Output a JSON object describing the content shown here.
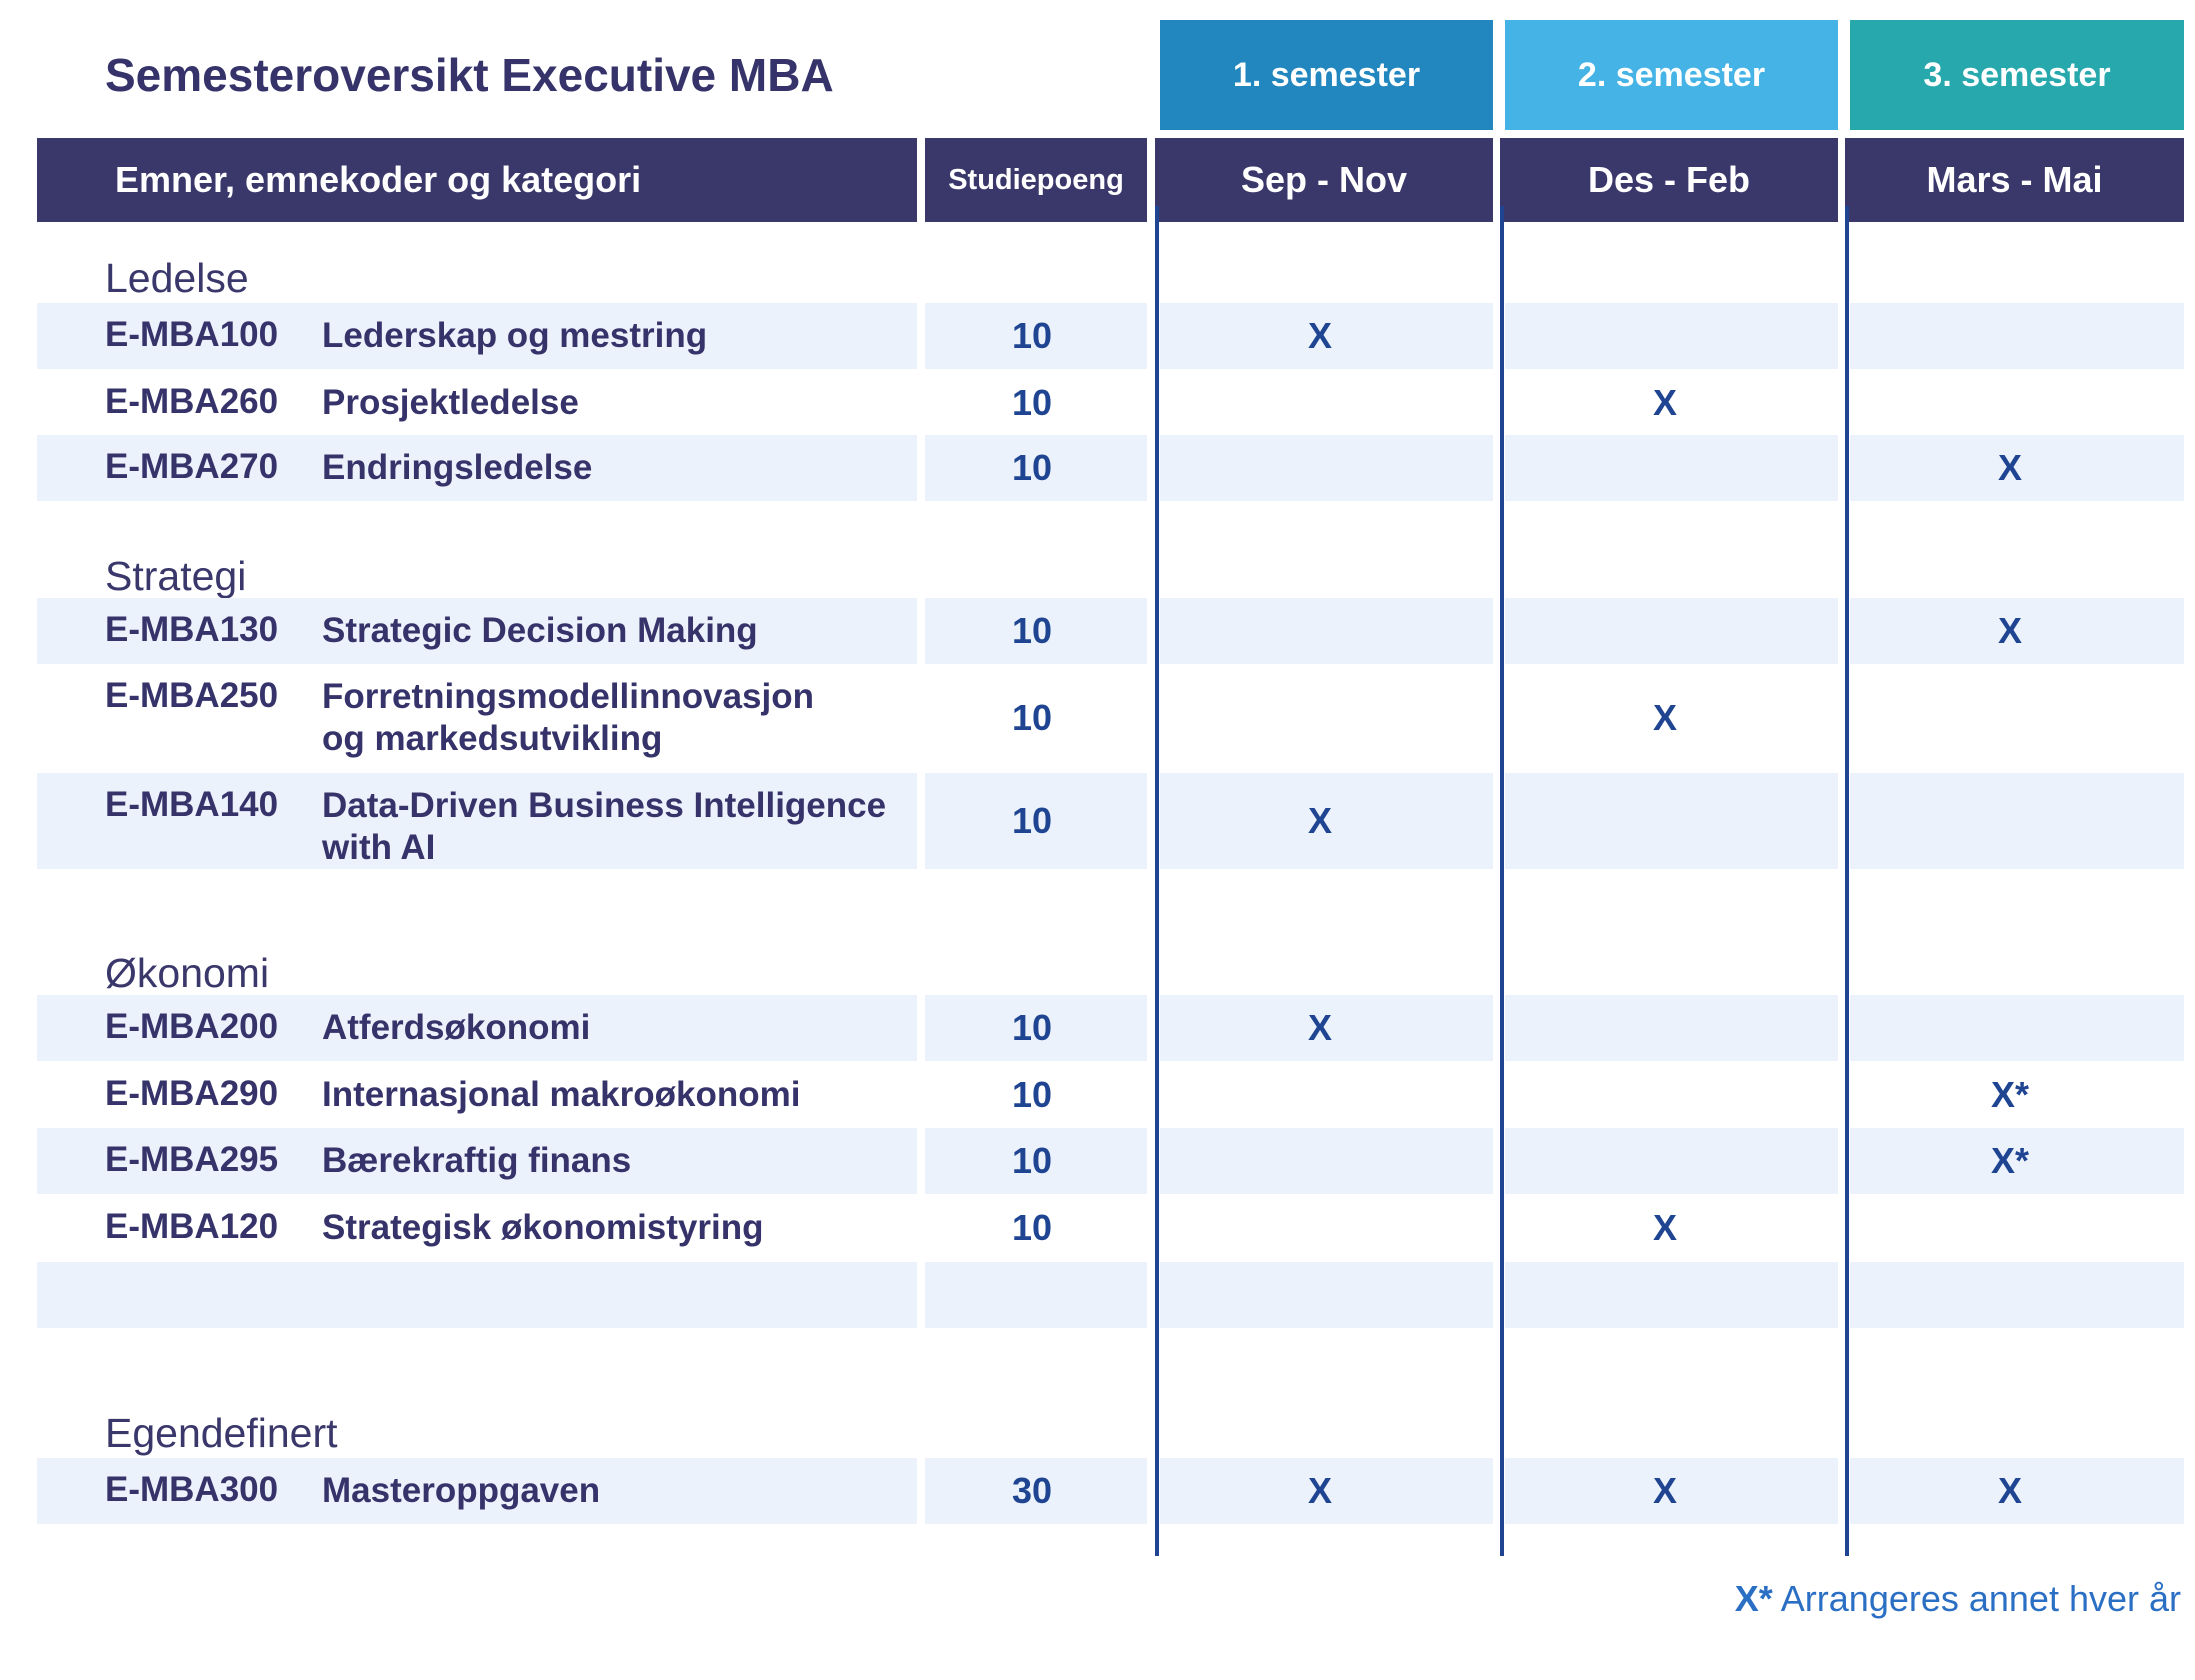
{
  "title": "Semesteroversikt Executive MBA",
  "semesters": [
    {
      "label": "1. semester",
      "period": "Sep - Nov",
      "color": "#2287be"
    },
    {
      "label": "2. semester",
      "period": "Des - Feb",
      "color": "#45b3e6"
    },
    {
      "label": "3.  semester",
      "period": "Mars - Mai",
      "color": "#27a8ac"
    }
  ],
  "header": {
    "subjects": "Emner, emnekoder og kategori",
    "credits": "Studiepoeng"
  },
  "categories": [
    {
      "name": "Ledelse",
      "courses": [
        {
          "code": "E-MBA100",
          "name": "Lederskap og mestring",
          "credits": "10",
          "marks": [
            "X",
            "",
            ""
          ]
        },
        {
          "code": "E-MBA260",
          "name": "Prosjektledelse",
          "credits": "10",
          "marks": [
            "",
            "X",
            ""
          ]
        },
        {
          "code": "E-MBA270",
          "name": "Endringsledelse",
          "credits": "10",
          "marks": [
            "",
            "",
            "X"
          ]
        }
      ]
    },
    {
      "name": "Strategi",
      "courses": [
        {
          "code": "E-MBA130",
          "name": "Strategic Decision Making",
          "credits": "10",
          "marks": [
            "",
            "",
            "X"
          ]
        },
        {
          "code": "E-MBA250",
          "name_lines": [
            "Forretningsmodellinnovasjon",
            "og markedsutvikling"
          ],
          "credits": "10",
          "marks": [
            "",
            "X",
            ""
          ]
        },
        {
          "code": "E-MBA140",
          "name_lines": [
            "Data-Driven Business Intelligence",
            "with AI"
          ],
          "credits": "10",
          "marks": [
            "X",
            "",
            ""
          ]
        }
      ]
    },
    {
      "name": "Økonomi",
      "courses": [
        {
          "code": "E-MBA200",
          "name": "Atferdsøkonomi",
          "credits": "10",
          "marks": [
            "X",
            "",
            ""
          ]
        },
        {
          "code": "E-MBA290",
          "name": "Internasjonal makroøkonomi",
          "credits": "10",
          "marks": [
            "",
            "",
            "X*"
          ]
        },
        {
          "code": "E-MBA295",
          "name": "Bærekraftig finans",
          "credits": "10",
          "marks": [
            "",
            "",
            "X*"
          ]
        },
        {
          "code": "E-MBA120",
          "name": "Strategisk økonomistyring",
          "credits": "10",
          "marks": [
            "",
            "X",
            ""
          ]
        }
      ]
    },
    {
      "name": "Egendefinert",
      "courses": [
        {
          "code": "E-MBA300",
          "name": "Masteroppgaven",
          "credits": "30",
          "marks": [
            "X",
            "X",
            "X"
          ]
        }
      ]
    }
  ],
  "footnote": {
    "symbol": "X*",
    "text": " Arrangeres annet hver år"
  }
}
